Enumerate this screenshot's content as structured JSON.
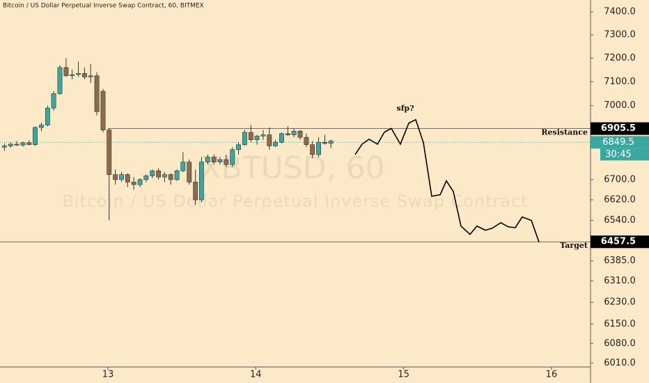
{
  "chart_data": {
    "type": "candlestick",
    "title": "Bitcoin / US Dollar Perpetual Inverse Swap Contract, 60, BITMEX",
    "watermark": {
      "symbol": "XBTUSD, 60",
      "description": "Bitcoin / US Dollar Perpetual Inverse Swap Contract"
    },
    "log_scale": true,
    "up_color": "#3aa8a0",
    "down_color": "#8b6d4b",
    "x": [
      12.3,
      12.342,
      12.383,
      12.425,
      12.467,
      12.508,
      12.55,
      12.592,
      12.633,
      12.675,
      12.717,
      12.758,
      12.8,
      12.842,
      12.883,
      12.925,
      12.967,
      13.008,
      13.05,
      13.092,
      13.133,
      13.175,
      13.217,
      13.258,
      13.3,
      13.342,
      13.383,
      13.425,
      13.467,
      13.508,
      13.55,
      13.592,
      13.633,
      13.675,
      13.717,
      13.758,
      13.8,
      13.842,
      13.883,
      13.925,
      13.967,
      14.008,
      14.05,
      14.092,
      14.133,
      14.175,
      14.217,
      14.258,
      14.3,
      14.342,
      14.383,
      14.425,
      14.467,
      14.508
    ],
    "open": [
      6830,
      6835,
      6842,
      6838,
      6848,
      6840,
      6910,
      6920,
      6990,
      7050,
      7160,
      7125,
      7130,
      7135,
      7120,
      7125,
      7060,
      6900,
      6720,
      6700,
      6720,
      6690,
      6680,
      6700,
      6715,
      6735,
      6710,
      6720,
      6700,
      6735,
      6770,
      6690,
      6620,
      6770,
      6790,
      6770,
      6780,
      6760,
      6820,
      6840,
      6890,
      6860,
      6875,
      6880,
      6835,
      6850,
      6885,
      6880,
      6895,
      6870,
      6840,
      6800,
      6850,
      6845
    ],
    "high": [
      6845,
      6850,
      6855,
      6852,
      6858,
      6915,
      6930,
      7000,
      7060,
      7170,
      7200,
      7150,
      7185,
      7160,
      7175,
      7140,
      7070,
      6905,
      6740,
      6730,
      6725,
      6710,
      6705,
      6720,
      6740,
      6745,
      6730,
      6725,
      6740,
      6810,
      6780,
      6740,
      6790,
      6800,
      6800,
      6790,
      6800,
      6830,
      6850,
      6900,
      6920,
      6880,
      6900,
      6910,
      6860,
      6890,
      6915,
      6905,
      6900,
      6885,
      6855,
      6870,
      6880,
      6860
    ],
    "low": [
      6815,
      6828,
      6835,
      6832,
      6838,
      6835,
      6895,
      6915,
      6980,
      7045,
      7120,
      7110,
      7120,
      7110,
      7095,
      6960,
      6890,
      6540,
      6680,
      6690,
      6670,
      6660,
      6670,
      6690,
      6705,
      6700,
      6690,
      6680,
      6695,
      6730,
      6680,
      6600,
      6610,
      6760,
      6760,
      6760,
      6750,
      6750,
      6800,
      6835,
      6850,
      6840,
      6860,
      6820,
      6830,
      6845,
      6875,
      6870,
      6860,
      6830,
      6785,
      6790,
      6840,
      6825
    ],
    "close": [
      6835,
      6842,
      6838,
      6848,
      6840,
      6910,
      6920,
      6990,
      7050,
      7160,
      7125,
      7130,
      7135,
      7120,
      7125,
      6975,
      6900,
      6720,
      6700,
      6720,
      6690,
      6680,
      6700,
      6715,
      6735,
      6710,
      6720,
      6700,
      6735,
      6770,
      6690,
      6620,
      6770,
      6790,
      6770,
      6780,
      6760,
      6820,
      6840,
      6890,
      6860,
      6875,
      6880,
      6835,
      6850,
      6885,
      6880,
      6895,
      6870,
      6840,
      6800,
      6850,
      6845,
      6855
    ],
    "drawing": {
      "color": "#000000",
      "x": [
        14.672,
        14.719,
        14.766,
        14.823,
        14.87,
        14.917,
        14.978,
        15.035,
        15.082,
        15.134,
        15.19,
        15.247,
        15.289,
        15.336,
        15.388,
        15.449,
        15.496,
        15.553,
        15.6,
        15.657,
        15.708,
        15.755,
        15.802,
        15.864,
        15.916
      ],
      "values": [
        6800,
        6842,
        6862,
        6842,
        6891,
        6906,
        6842,
        6928,
        6942,
        6848,
        6634,
        6640,
        6695,
        6653,
        6518,
        6486,
        6518,
        6502,
        6510,
        6531,
        6515,
        6512,
        6553,
        6540,
        6456
      ]
    },
    "annotation": "sfp?",
    "hlines": [
      {
        "value": 6905.5,
        "label": "Resistance",
        "from": 13.0,
        "badge": "#000000"
      },
      {
        "value": 6457.5,
        "label": "Target",
        "from": 12.27,
        "badge": "#000000"
      }
    ],
    "last_price": {
      "value": 6849.5,
      "countdown": "30:45",
      "color": "#3aa8a0"
    },
    "xlim": [
      12.27,
      16.264
    ],
    "xticks": [
      13,
      14,
      15,
      16
    ],
    "ylim": [
      5996,
      7452
    ],
    "yticks": [
      {
        "value": 7400,
        "label": "7400.0"
      },
      {
        "value": 7300,
        "label": "7300.0"
      },
      {
        "value": 7200,
        "label": "7200.0"
      },
      {
        "value": 7100,
        "label": "7100.0"
      },
      {
        "value": 7000,
        "label": "7000.0"
      },
      {
        "value": 6700,
        "label": "6700.0"
      },
      {
        "value": 6620,
        "label": "6620.0"
      },
      {
        "value": 6540,
        "label": "6540.0"
      },
      {
        "value": 6385,
        "label": "6385.0"
      },
      {
        "value": 6310,
        "label": "6310.0"
      },
      {
        "value": 6230,
        "label": "6230.0"
      },
      {
        "value": 6150,
        "label": "6150.0"
      },
      {
        "value": 6080,
        "label": "6080.0"
      },
      {
        "value": 6010,
        "label": "6010.0"
      }
    ]
  }
}
